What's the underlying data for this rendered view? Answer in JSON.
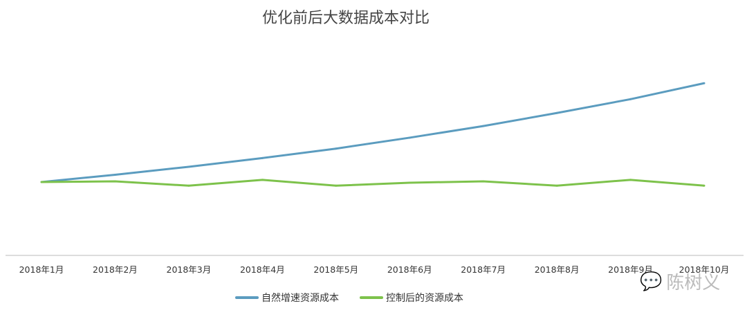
{
  "chart_data": {
    "type": "line",
    "title": "优化前后大数据成本对比",
    "categories": [
      "2018年1月",
      "2018年2月",
      "2018年3月",
      "2018年4月",
      "2018年5月",
      "2018年6月",
      "2018年7月",
      "2018年8月",
      "2018年9月",
      "2018年10月"
    ],
    "series": [
      {
        "name": "自然增速资源成本",
        "color": "#5b9cbf",
        "values": [
          100,
          110,
          121,
          133,
          146,
          161,
          177,
          195,
          214,
          236
        ]
      },
      {
        "name": "控制后的资源成本",
        "color": "#7dc24b",
        "values": [
          100,
          101,
          95,
          103,
          95,
          99,
          101,
          95,
          103,
          95
        ]
      }
    ],
    "ylim": [
      0,
      260
    ],
    "y_axis_labels_shown": false,
    "grid": false,
    "legend_position": "bottom"
  },
  "watermark": {
    "text": "陈树义",
    "icon": "wechat-icon"
  }
}
